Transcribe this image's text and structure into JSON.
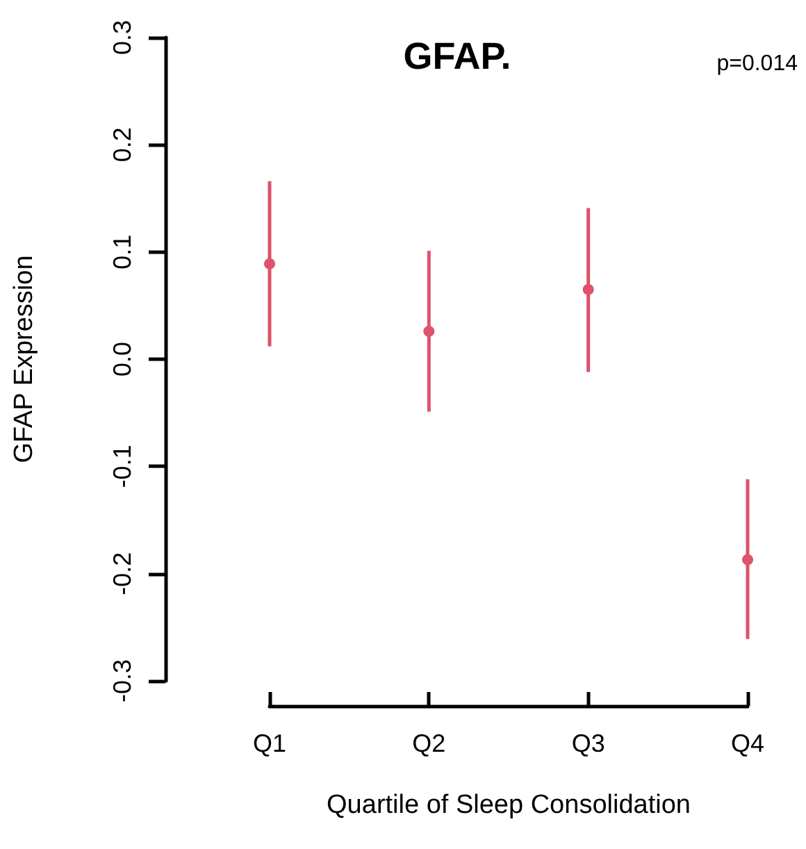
{
  "chart_data": {
    "type": "scatter",
    "title": "GFAP.",
    "xlabel": "Quartile of Sleep Consolidation",
    "ylabel": "GFAP Expression",
    "annotations": [
      "p=0.014"
    ],
    "categories": [
      "Q1",
      "Q2",
      "Q3",
      "Q4"
    ],
    "series": [
      {
        "color": "#df536b",
        "values": [
          0.089,
          0.026,
          0.065,
          -0.187
        ],
        "errors": [
          [
            0.012,
            0.166
          ],
          [
            -0.049,
            0.101
          ],
          [
            -0.012,
            0.141
          ],
          [
            -0.261,
            -0.112
          ]
        ]
      }
    ],
    "ylim": [
      -0.3,
      0.3
    ],
    "yticks": [
      -0.3,
      -0.2,
      -0.1,
      {
        "value": 0,
        "label": "0.0"
      },
      0.1,
      0.2,
      0.3
    ],
    "marker": "circle"
  }
}
